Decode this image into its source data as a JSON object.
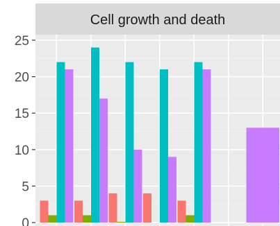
{
  "chart_data": {
    "type": "bar",
    "title": "Cell growth and death",
    "xlabel": "",
    "ylabel": "",
    "ylim": [
      0,
      25
    ],
    "y_ticks": [
      0,
      5,
      10,
      15,
      20,
      25
    ],
    "y_tick_labels": [
      "0",
      "5",
      "10",
      "15",
      "20",
      "25"
    ],
    "grid": true,
    "legend": "none",
    "groups": 7,
    "series": [
      {
        "color": "#F8766D",
        "values": [
          3,
          3,
          4,
          4,
          3,
          0,
          0
        ]
      },
      {
        "color": "#7CAE00",
        "values": [
          1,
          1,
          0.1,
          0,
          1,
          0,
          0
        ]
      },
      {
        "color": "#00BFC4",
        "values": [
          22,
          24,
          22,
          21,
          22,
          0,
          0
        ]
      },
      {
        "color": "#C77CFF",
        "values": [
          21,
          17,
          10,
          9,
          21,
          0,
          13
        ]
      }
    ]
  },
  "colors": {
    "panel_background": "#EBEBEB",
    "strip_background": "#D9D9D9",
    "grid_major": "#FFFFFF",
    "grid_minor": "#F2F2F2",
    "tick_text": "#4D4D4D",
    "tick_mark": "#333333"
  }
}
